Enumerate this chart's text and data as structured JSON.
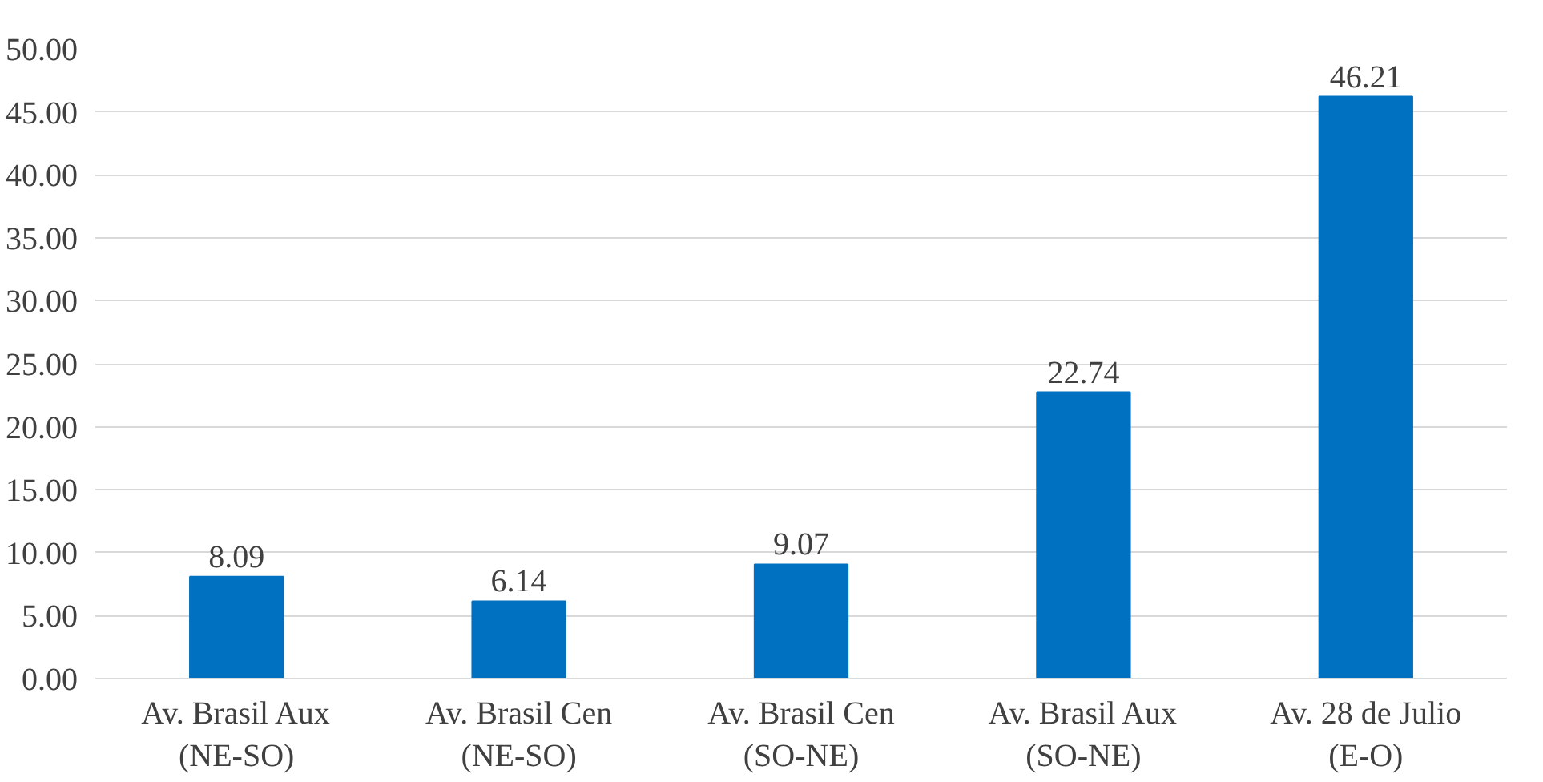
{
  "chart_data": {
    "type": "bar",
    "categories": [
      "Av. Brasil Aux\n(NE-SO)",
      "Av. Brasil Cen\n(NE-SO)",
      "Av. Brasil Cen\n(SO-NE)",
      "Av. Brasil Aux\n(SO-NE)",
      "Av. 28 de Julio\n(E-O)"
    ],
    "values": [
      8.09,
      6.14,
      9.07,
      22.74,
      46.21
    ],
    "color": "#0070c0",
    "ylim": [
      0,
      50
    ],
    "yticks": [
      {
        "value": 0,
        "label": "0.00"
      },
      {
        "value": 5,
        "label": "5.00"
      },
      {
        "value": 10,
        "label": "10.00"
      },
      {
        "value": 15,
        "label": "15.00"
      },
      {
        "value": 20,
        "label": "20.00"
      },
      {
        "value": 25,
        "label": "25.00"
      },
      {
        "value": 30,
        "label": "30.00"
      },
      {
        "value": 35,
        "label": "35.00"
      },
      {
        "value": 40,
        "label": "40.00"
      },
      {
        "value": 45,
        "label": "45.00"
      },
      {
        "value": 50,
        "label": "50.00"
      }
    ],
    "grid": "y",
    "data_labels": true
  }
}
